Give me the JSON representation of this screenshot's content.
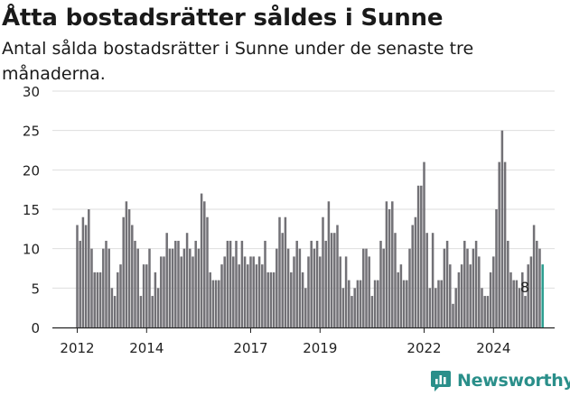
{
  "title": "Åtta bostadsrätter såldes i Sunne",
  "subtitle": "Antal sålda bostadsrätter i Sunne under de senaste tre månaderna.",
  "brand": {
    "name": "Newsworthy",
    "icon": "newsworthy-logo-icon",
    "color": "#2a8f8a"
  },
  "chart_data": {
    "type": "bar",
    "title": "Åtta bostadsrätter såldes i Sunne",
    "subtitle": "Antal sålda bostadsrätter i Sunne under de senaste tre månaderna.",
    "xlabel": "",
    "ylabel": "",
    "ylim": [
      0,
      30
    ],
    "y_ticks": [
      0,
      5,
      10,
      15,
      20,
      25,
      30
    ],
    "x_tick_labels": [
      {
        "label": "2012",
        "index": 0
      },
      {
        "label": "2014",
        "index": 24
      },
      {
        "label": "2017",
        "index": 60
      },
      {
        "label": "2019",
        "index": 84
      },
      {
        "label": "2022",
        "index": 120
      },
      {
        "label": "2024",
        "index": 144
      }
    ],
    "grid": true,
    "colors": {
      "bar": "#727176",
      "highlight": "#2a9d8f",
      "grid": "#dedede",
      "axis": "#222222"
    },
    "annotation": {
      "text": "8",
      "index": 155
    },
    "values": [
      13,
      11,
      14,
      13,
      15,
      10,
      7,
      7,
      7,
      10,
      11,
      10,
      5,
      4,
      7,
      8,
      14,
      16,
      15,
      13,
      11,
      10,
      4,
      8,
      8,
      10,
      4,
      7,
      5,
      9,
      9,
      12,
      10,
      10,
      11,
      11,
      9,
      10,
      12,
      10,
      9,
      11,
      10,
      17,
      16,
      14,
      7,
      6,
      6,
      6,
      8,
      9,
      11,
      11,
      9,
      11,
      8,
      11,
      9,
      8,
      9,
      9,
      8,
      9,
      8,
      11,
      7,
      7,
      7,
      10,
      14,
      12,
      14,
      10,
      7,
      9,
      11,
      10,
      7,
      5,
      9,
      11,
      10,
      11,
      9,
      14,
      11,
      16,
      12,
      12,
      13,
      9,
      5,
      9,
      6,
      4,
      5,
      6,
      6,
      10,
      10,
      9,
      4,
      6,
      6,
      11,
      10,
      16,
      15,
      16,
      12,
      7,
      8,
      6,
      6,
      10,
      13,
      14,
      18,
      18,
      21,
      12,
      5,
      12,
      5,
      6,
      6,
      10,
      11,
      8,
      3,
      5,
      7,
      8,
      11,
      10,
      8,
      10,
      11,
      9,
      5,
      4,
      4,
      7,
      9,
      15,
      21,
      25,
      21,
      11,
      7,
      6,
      6,
      5,
      7,
      4,
      8,
      9,
      13,
      11,
      10,
      8
    ]
  }
}
